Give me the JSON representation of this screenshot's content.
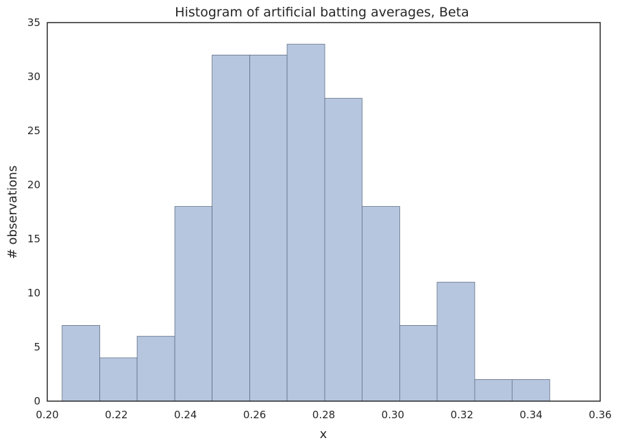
{
  "chart_data": {
    "type": "bar",
    "title": "Histogram of artificial batting averages, Beta",
    "xlabel": "x",
    "ylabel": "# observations",
    "xlim": [
      0.2,
      0.36
    ],
    "ylim": [
      0,
      35
    ],
    "grid": false,
    "bar_color": "#b7c6df",
    "bar_edge_color": "#5f6f85",
    "x_ticks": [
      "0.20",
      "0.22",
      "0.24",
      "0.26",
      "0.28",
      "0.30",
      "0.32",
      "0.34",
      "0.36"
    ],
    "y_ticks": [
      "0",
      "5",
      "10",
      "15",
      "20",
      "25",
      "30",
      "35"
    ],
    "bins": [
      {
        "x0": 0.2043,
        "x1": 0.2152,
        "count": 7
      },
      {
        "x0": 0.2152,
        "x1": 0.226,
        "count": 4
      },
      {
        "x0": 0.226,
        "x1": 0.2369,
        "count": 6
      },
      {
        "x0": 0.2369,
        "x1": 0.2477,
        "count": 18
      },
      {
        "x0": 0.2477,
        "x1": 0.2586,
        "count": 32
      },
      {
        "x0": 0.2586,
        "x1": 0.2694,
        "count": 32
      },
      {
        "x0": 0.2694,
        "x1": 0.2803,
        "count": 33
      },
      {
        "x0": 0.2803,
        "x1": 0.2911,
        "count": 28
      },
      {
        "x0": 0.2911,
        "x1": 0.302,
        "count": 18
      },
      {
        "x0": 0.302,
        "x1": 0.3128,
        "count": 7
      },
      {
        "x0": 0.3128,
        "x1": 0.3237,
        "count": 11
      },
      {
        "x0": 0.3237,
        "x1": 0.3345,
        "count": 2
      },
      {
        "x0": 0.3345,
        "x1": 0.3454,
        "count": 2
      }
    ]
  }
}
